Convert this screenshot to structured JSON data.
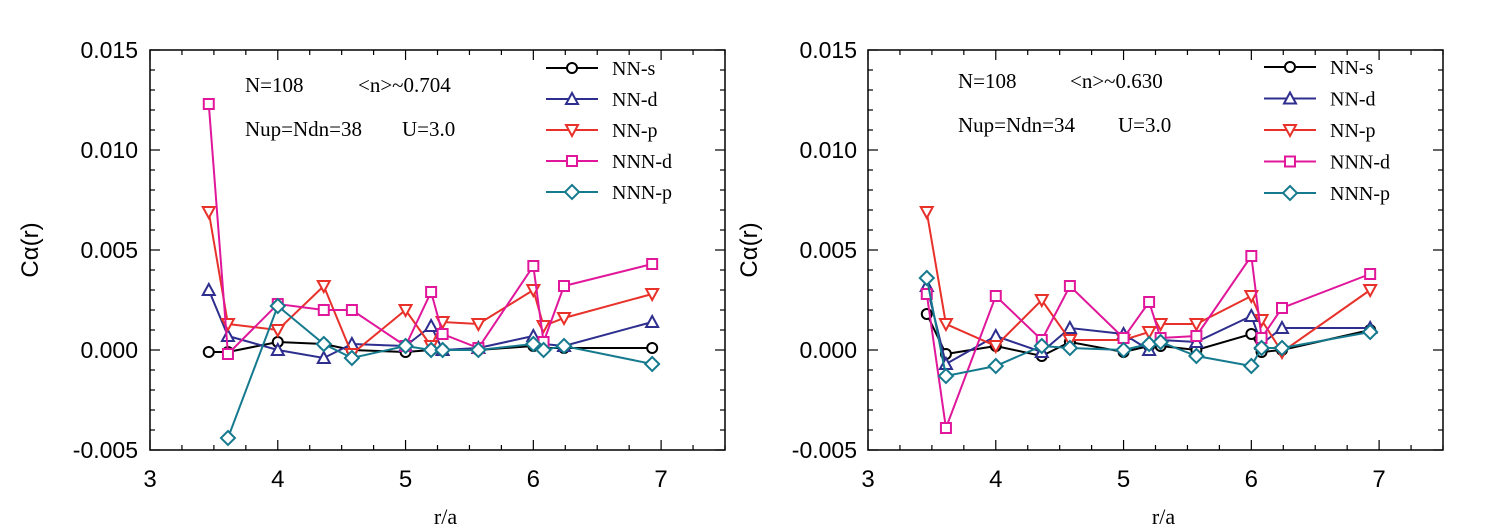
{
  "chart_data": [
    {
      "type": "line",
      "ylabel": "Cα(r)",
      "xlabel": "r/a",
      "xlim": [
        3,
        7.5
      ],
      "ylim": [
        -0.005,
        0.015
      ],
      "x_ticks": [
        "3",
        "4",
        "5",
        "6",
        "7"
      ],
      "y_ticks": [
        "-0.005",
        "0.000",
        "0.005",
        "0.010",
        "0.015"
      ],
      "annotations": [
        "N=108",
        "<n>~0.704",
        "Nup=Ndn=38",
        "U=3.0"
      ],
      "legend_position": "top-right",
      "series": [
        {
          "name": "NN-s",
          "color": "#000000",
          "marker": "circle",
          "x": [
            3.46,
            3.61,
            4.0,
            4.36,
            4.58,
            5.0,
            5.2,
            5.29,
            5.57,
            6.0,
            6.08,
            6.24,
            6.93
          ],
          "y": [
            -0.0001,
            -0.0001,
            0.0004,
            0.0003,
            0.0,
            -0.0001,
            0.0,
            0.0,
            0.0,
            0.0002,
            0.0001,
            0.0001,
            0.0001
          ]
        },
        {
          "name": "NN-d",
          "color": "#2e2e8f",
          "marker": "triangle-up",
          "x": [
            3.46,
            3.61,
            4.0,
            4.36,
            4.58,
            5.0,
            5.2,
            5.29,
            5.57,
            6.0,
            6.08,
            6.24,
            6.93
          ],
          "y": [
            0.003,
            0.0007,
            0.0,
            -0.0004,
            0.0003,
            0.0002,
            0.0012,
            0.0,
            0.0001,
            0.0007,
            0.0003,
            0.0002,
            0.0014
          ]
        },
        {
          "name": "NN-p",
          "color": "#e8312a",
          "marker": "triangle-down",
          "x": [
            3.46,
            3.61,
            4.0,
            4.36,
            4.58,
            5.0,
            5.2,
            5.29,
            5.57,
            6.0,
            6.08,
            6.24,
            6.93
          ],
          "y": [
            0.0069,
            0.0013,
            0.001,
            0.0032,
            -0.0002,
            0.002,
            0.0002,
            0.0014,
            0.0013,
            0.003,
            0.0012,
            0.0016,
            0.0028
          ]
        },
        {
          "name": "NNN-d",
          "color": "#e0179a",
          "marker": "square",
          "x": [
            3.46,
            3.61,
            4.0,
            4.36,
            4.58,
            5.0,
            5.2,
            5.29,
            5.57,
            6.0,
            6.08,
            6.24,
            6.93
          ],
          "y": [
            0.0123,
            -0.0002,
            0.0023,
            0.002,
            0.002,
            0.0002,
            0.0029,
            0.0008,
            0.0001,
            0.0042,
            0.0004,
            0.0032,
            0.0043
          ]
        },
        {
          "name": "NNN-p",
          "color": "#167a8f",
          "marker": "diamond",
          "x": [
            3.61,
            4.0,
            4.36,
            4.58,
            5.0,
            5.2,
            5.29,
            5.57,
            6.0,
            6.08,
            6.24,
            6.93
          ],
          "y": [
            -0.0044,
            0.0022,
            0.0003,
            -0.0004,
            0.0002,
            0.0,
            0.0,
            0.0,
            0.0003,
            0.0,
            0.0002,
            -0.0007
          ]
        }
      ]
    },
    {
      "type": "line",
      "ylabel": "Cα(r)",
      "xlabel": "r/a",
      "xlim": [
        3,
        7.5
      ],
      "ylim": [
        -0.005,
        0.015
      ],
      "x_ticks": [
        "3",
        "4",
        "5",
        "6",
        "7"
      ],
      "y_ticks": [
        "-0.005",
        "0.000",
        "0.005",
        "0.010",
        "0.015"
      ],
      "annotations": [
        "N=108",
        "<n>~0.630",
        "Nup=Ndn=34",
        "U=3.0"
      ],
      "legend_position": "top-right",
      "series": [
        {
          "name": "NN-s",
          "color": "#000000",
          "marker": "circle",
          "x": [
            3.46,
            3.61,
            4.0,
            4.36,
            4.58,
            5.0,
            5.2,
            5.29,
            5.57,
            6.0,
            6.08,
            6.24,
            6.93
          ],
          "y": [
            0.0018,
            -0.0002,
            0.0002,
            -0.0003,
            0.0004,
            -0.0001,
            0.0002,
            0.0002,
            0.0,
            0.0008,
            -0.0001,
            0.0,
            0.001
          ]
        },
        {
          "name": "NN-d",
          "color": "#2e2e8f",
          "marker": "triangle-up",
          "x": [
            3.46,
            3.61,
            4.0,
            4.36,
            4.58,
            5.0,
            5.2,
            5.29,
            5.57,
            6.0,
            6.08,
            6.24,
            6.93
          ],
          "y": [
            0.0032,
            -0.0007,
            0.0007,
            -0.0001,
            0.0011,
            0.0008,
            0.0,
            0.0005,
            0.0004,
            0.0017,
            0.0003,
            0.0011,
            0.0011
          ]
        },
        {
          "name": "NN-p",
          "color": "#e8312a",
          "marker": "triangle-down",
          "x": [
            3.46,
            3.61,
            4.0,
            4.36,
            4.58,
            5.0,
            5.2,
            5.29,
            5.57,
            6.0,
            6.08,
            6.24,
            6.93
          ],
          "y": [
            0.0069,
            0.0013,
            0.0002,
            0.0025,
            0.0005,
            0.0005,
            0.0009,
            0.0013,
            0.0013,
            0.0027,
            0.0015,
            -0.0001,
            0.003
          ]
        },
        {
          "name": "NNN-d",
          "color": "#e0179a",
          "marker": "square",
          "x": [
            3.46,
            3.61,
            4.0,
            4.36,
            4.58,
            5.0,
            5.2,
            5.29,
            5.57,
            6.0,
            6.08,
            6.24,
            6.93
          ],
          "y": [
            0.0028,
            -0.0039,
            0.0027,
            0.0005,
            0.0032,
            0.0006,
            0.0024,
            0.0006,
            0.0007,
            0.0047,
            0.0006,
            0.0021,
            0.0038
          ]
        },
        {
          "name": "NNN-p",
          "color": "#167a8f",
          "marker": "diamond",
          "x": [
            3.46,
            3.61,
            4.0,
            4.36,
            4.58,
            5.0,
            5.2,
            5.29,
            5.57,
            6.0,
            6.08,
            6.24,
            6.93
          ],
          "y": [
            0.0036,
            -0.0013,
            -0.0008,
            0.0002,
            0.0001,
            0.0,
            0.0003,
            0.0004,
            -0.0003,
            -0.0008,
            0.0001,
            0.0001,
            0.0009
          ]
        }
      ]
    }
  ]
}
